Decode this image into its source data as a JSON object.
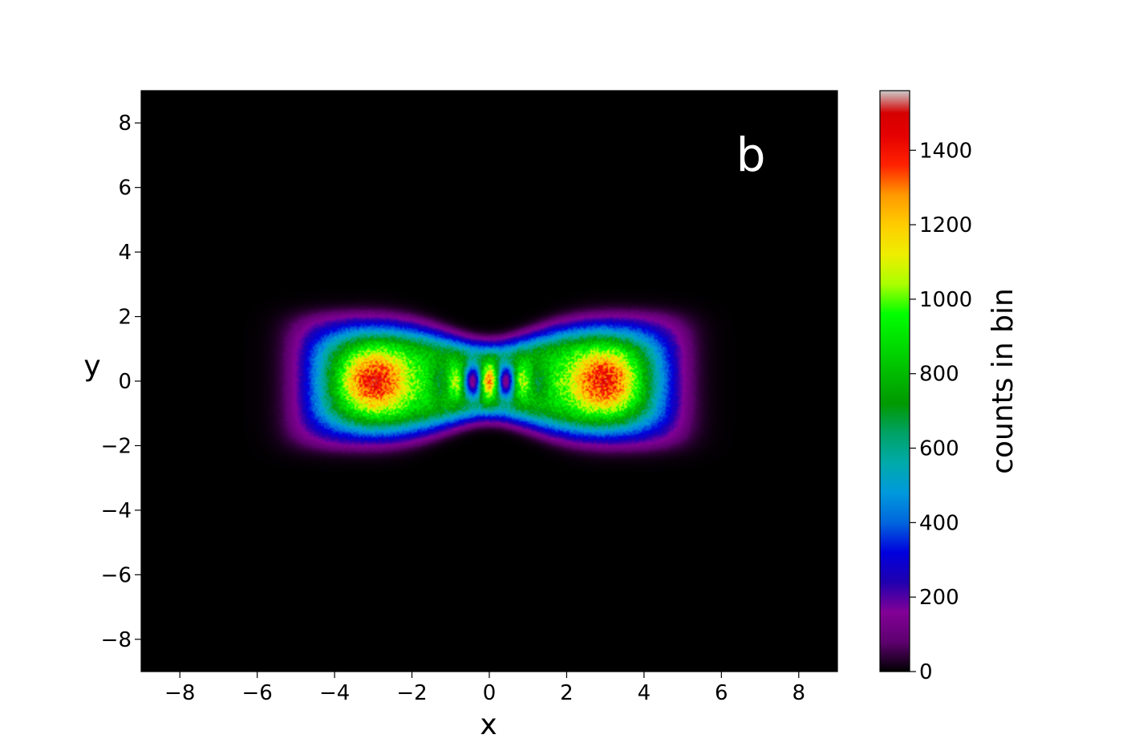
{
  "chart_data": {
    "type": "heatmap",
    "panel_label": "b",
    "xlabel": "x",
    "ylabel": "y",
    "xlim": [
      -9,
      9
    ],
    "ylim": [
      -9,
      9
    ],
    "xticks": [
      -8,
      -6,
      -4,
      -2,
      0,
      2,
      4,
      6,
      8
    ],
    "yticks": [
      -8,
      -6,
      -4,
      -2,
      0,
      2,
      4,
      6,
      8
    ],
    "xtick_labels": [
      "−8",
      "−6",
      "−4",
      "−2",
      "0",
      "2",
      "4",
      "6",
      "8"
    ],
    "ytick_labels": [
      "−8",
      "−6",
      "−4",
      "−2",
      "0",
      "2",
      "4",
      "6",
      "8"
    ],
    "grid": false,
    "background_color": "#000000",
    "colorbar": {
      "label": "counts in bin",
      "range": [
        0,
        1560
      ],
      "ticks": [
        0,
        200,
        400,
        600,
        800,
        1000,
        1200,
        1400
      ],
      "tick_labels": [
        "0",
        "200",
        "400",
        "600",
        "800",
        "1000",
        "1200",
        "1400"
      ],
      "colormap": "nipy_spectral",
      "stops": [
        {
          "value": 0,
          "color": "#000000"
        },
        {
          "value": 80,
          "color": "#5e0070"
        },
        {
          "value": 160,
          "color": "#820096"
        },
        {
          "value": 240,
          "color": "#2000b0"
        },
        {
          "value": 320,
          "color": "#0000dd"
        },
        {
          "value": 400,
          "color": "#0066dd"
        },
        {
          "value": 480,
          "color": "#0099dd"
        },
        {
          "value": 560,
          "color": "#00aaaa"
        },
        {
          "value": 640,
          "color": "#00a266"
        },
        {
          "value": 720,
          "color": "#009900"
        },
        {
          "value": 800,
          "color": "#00bb00"
        },
        {
          "value": 880,
          "color": "#00dd00"
        },
        {
          "value": 960,
          "color": "#00ff00"
        },
        {
          "value": 1040,
          "color": "#aaff00"
        },
        {
          "value": 1120,
          "color": "#eeee00"
        },
        {
          "value": 1200,
          "color": "#ffcc00"
        },
        {
          "value": 1280,
          "color": "#ff9900"
        },
        {
          "value": 1360,
          "color": "#ff2200"
        },
        {
          "value": 1440,
          "color": "#e50000"
        },
        {
          "value": 1500,
          "color": "#d50000"
        },
        {
          "value": 1560,
          "color": "#cccccc"
        }
      ]
    },
    "features": [
      {
        "name": "left-lobe-peak",
        "x": -3.0,
        "y": 0.0,
        "counts": 1400
      },
      {
        "name": "right-lobe-peak",
        "x": 3.0,
        "y": 0.0,
        "counts": 1400
      },
      {
        "name": "center-peak",
        "x": 0.0,
        "y": 0.0,
        "counts": 1400
      },
      {
        "name": "center-minimum-left",
        "x": -0.45,
        "y": 0.0,
        "counts": 350
      },
      {
        "name": "center-minimum-right",
        "x": 0.45,
        "y": 0.0,
        "counts": 350
      },
      {
        "name": "outer-halo-extent",
        "x_range": [
          -5.2,
          5.2
        ],
        "y_range": [
          -2.3,
          2.3
        ],
        "counts": 150
      }
    ]
  }
}
